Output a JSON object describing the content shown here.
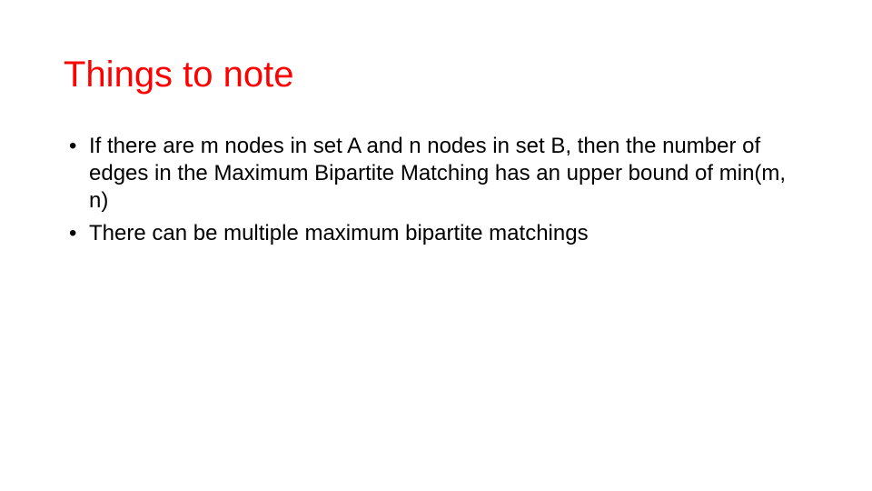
{
  "slide": {
    "title": "Things to note",
    "bullets": [
      "If there are m nodes in set A and n nodes in set B, then the number of edges in the Maximum Bipartite Matching has an upper bound of min(m, n)",
      "There can be multiple maximum bipartite matchings"
    ],
    "background_color": "#ffffff",
    "title_color": "#ff0000",
    "body_color": "#000000",
    "title_fontsize": 40,
    "body_fontsize": 24
  }
}
